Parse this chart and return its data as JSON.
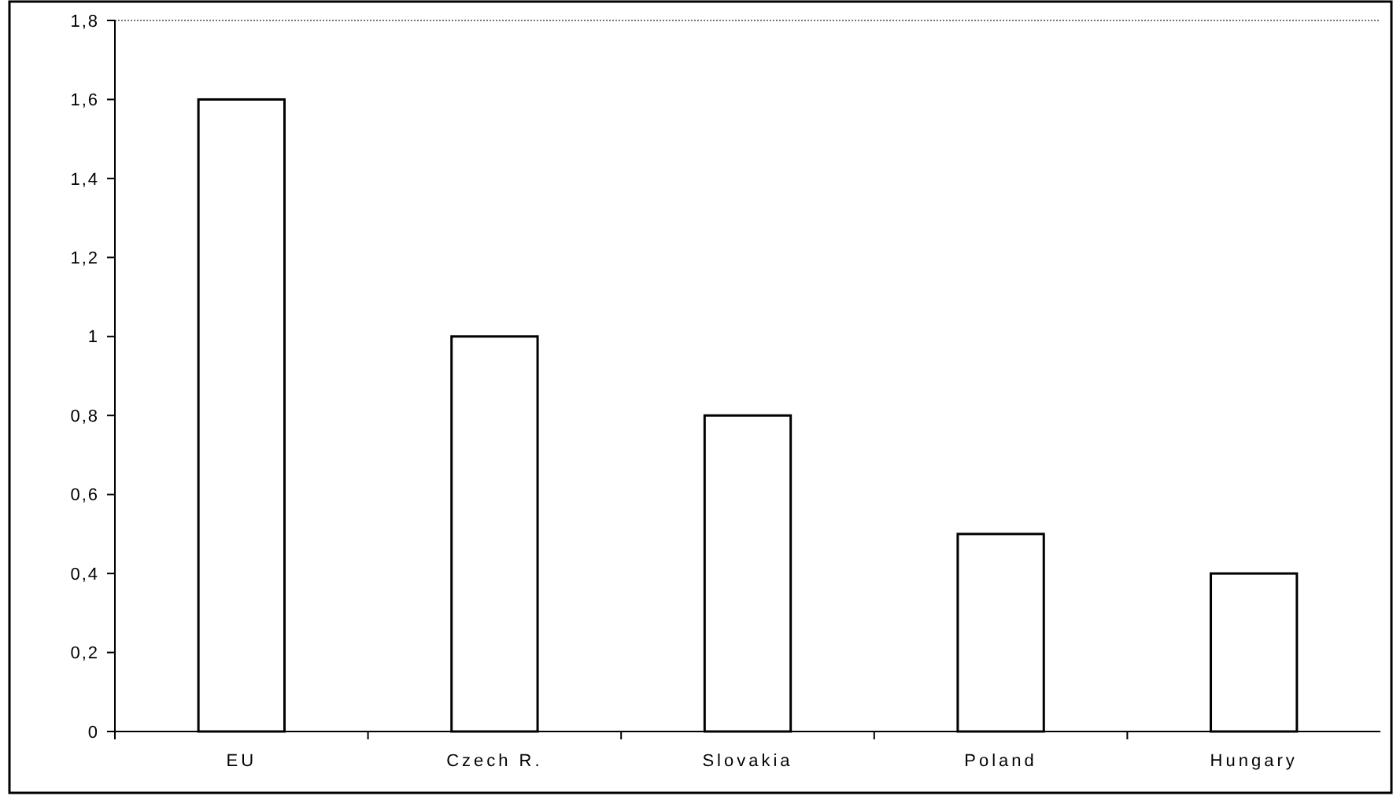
{
  "chart_data": {
    "type": "bar",
    "categories": [
      "EU",
      "Czech R.",
      "Slovakia",
      "Poland",
      "Hungary"
    ],
    "values": [
      1.6,
      1.0,
      0.8,
      0.5,
      0.4
    ],
    "color": "#ffffff",
    "ylim": [
      0,
      1.8
    ],
    "yticks": [
      0,
      {
        "value": 0.2,
        "label": "0,2"
      },
      {
        "value": 0.4,
        "label": "0,4"
      },
      {
        "value": 0.6,
        "label": "0,6"
      },
      {
        "value": 0.8,
        "label": "0,8"
      },
      1,
      {
        "value": 1.2,
        "label": "1,2"
      },
      {
        "value": 1.4,
        "label": "1,4"
      },
      {
        "value": 1.6,
        "label": "1,6"
      },
      {
        "value": 1.8,
        "label": "1,8"
      }
    ],
    "grid": false
  }
}
